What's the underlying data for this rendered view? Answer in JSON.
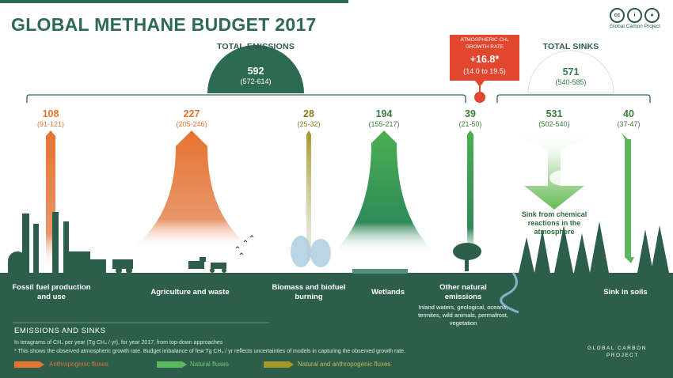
{
  "title": "GLOBAL METHANE BUDGET 2017",
  "logo": {
    "credit": "Global Carbon Project",
    "brand_line1": "GLOBAL CARBON",
    "brand_line2": "PROJECT",
    "cc_icons": [
      "cc",
      "by",
      "attribution"
    ]
  },
  "total_emissions": {
    "header": "TOTAL EMISSIONS",
    "value": "592",
    "range": "(572-614)"
  },
  "growth_rate": {
    "header_line1": "ATMOSPHERIC CH₄",
    "header_line2": "GROWTH RATE",
    "value": "+16.8*",
    "range": "(14.0 to 19.5)"
  },
  "total_sinks": {
    "header": "TOTAL SINKS",
    "value": "571",
    "range": "(540-585)"
  },
  "flows": [
    {
      "name": "fossil",
      "value": "108",
      "range": "(91-121)",
      "label": "Fossil fuel production and use",
      "type": "anthropogenic"
    },
    {
      "name": "agriculture",
      "value": "227",
      "range": "(205-246)",
      "label": "Agriculture and waste",
      "type": "anthropogenic"
    },
    {
      "name": "biomass",
      "value": "28",
      "range": "(25-32)",
      "label": "Biomass and biofuel burning",
      "type": "mixed"
    },
    {
      "name": "wetlands",
      "value": "194",
      "range": "(155-217)",
      "label": "Wetlands",
      "type": "natural"
    },
    {
      "name": "other-natural",
      "value": "39",
      "range": "(21-50)",
      "label": "Other natural emissions",
      "sublabel": "Inland waters, geological, oceans, termites, wild animals, permafrost, vegetation",
      "type": "natural"
    }
  ],
  "sinks": [
    {
      "name": "atmosphere",
      "value": "531",
      "range": "(502-540)",
      "label": "Sink from chemical reactions in the atmosphere"
    },
    {
      "name": "soils",
      "value": "40",
      "range": "(37-47)",
      "label": "Sink in soils"
    }
  ],
  "footer": {
    "heading": "EMISSIONS AND SINKS",
    "note1": "In teragrams of CH₄ per year (Tg CH₄ / yr), for year 2017, from top-down approaches",
    "note2": "* This shows the observed atmospheric growth rate. Budget imbalance of few Tg CH₄ / yr reflects uncertainties of models in capturing the observed growth rate.",
    "legend": [
      {
        "label": "Anthropogenic fluxes",
        "color": "#e4742e"
      },
      {
        "label": "Natural fluxes",
        "color": "#5cb85c"
      },
      {
        "label": "Natural and anthropogenic fluxes",
        "color": "#a5982a"
      }
    ]
  },
  "colors": {
    "dark_teal": "#2d6a52",
    "ground": "#2d5e4b",
    "growth_red": "#e0472e"
  }
}
